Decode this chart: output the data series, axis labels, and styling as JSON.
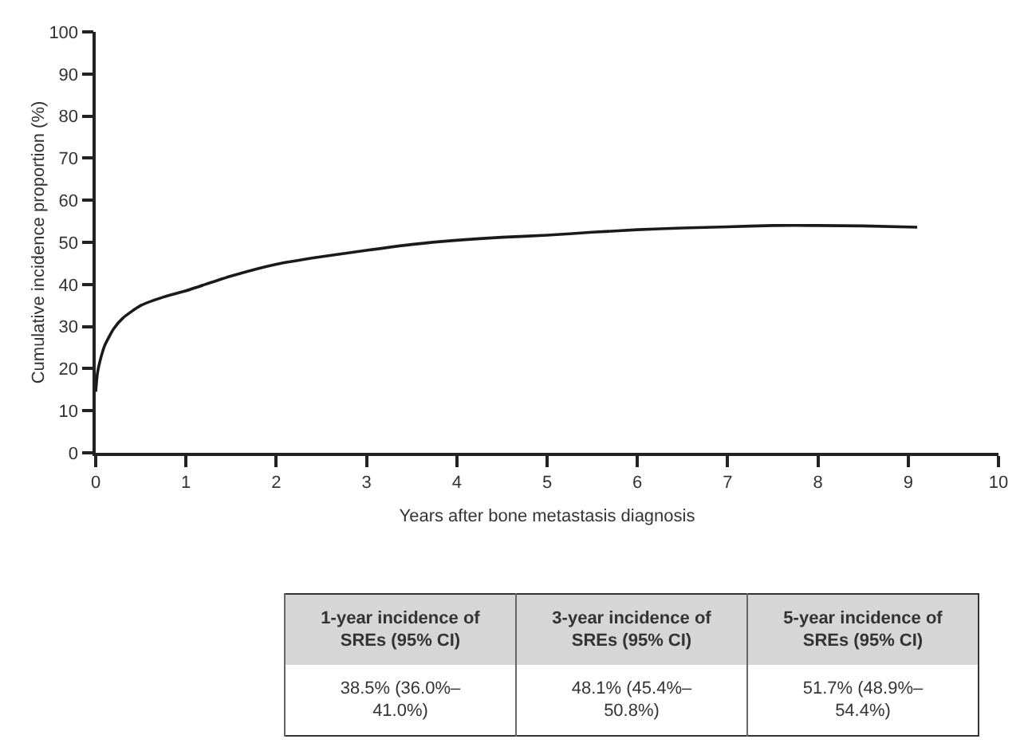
{
  "chart_data": {
    "type": "line",
    "xlabel": "Years after bone metastasis diagnosis",
    "ylabel": "Cumulative incidence proportion (%)",
    "x": [
      0,
      0.02,
      0.05,
      0.1,
      0.2,
      0.3,
      0.5,
      0.75,
      1,
      1.5,
      2,
      2.5,
      3,
      3.5,
      4,
      4.5,
      5,
      5.5,
      6,
      6.5,
      7,
      7.5,
      8,
      8.5,
      9.1
    ],
    "series": [
      {
        "color": "#1a1a1a",
        "values": [
          14.5,
          19,
          22,
          25.5,
          29.5,
          32,
          35,
          37,
          38.5,
          42,
          44.8,
          46.6,
          48.1,
          49.5,
          50.5,
          51.2,
          51.7,
          52.4,
          53,
          53.4,
          53.7,
          54,
          54,
          53.9,
          53.6
        ]
      }
    ],
    "xlim": [
      0,
      10
    ],
    "xticks": [
      0,
      1,
      2,
      3,
      4,
      5,
      6,
      7,
      8,
      9,
      10
    ],
    "ylim": [
      0,
      100
    ],
    "yticks": [
      0,
      10,
      20,
      30,
      40,
      50,
      60,
      70,
      80,
      90,
      100
    ],
    "grid": false,
    "marker": "none",
    "line_style": "solid",
    "annotations": [
      "1-year incidence of SREs (95% CI)",
      "3-year incidence of SREs (95% CI)",
      "5-year incidence of SREs (95% CI)",
      "38.5% (36.0%–41.0%)",
      "48.1% (45.4%–50.8%)",
      "51.7% (48.9%–54.4%)"
    ]
  }
}
